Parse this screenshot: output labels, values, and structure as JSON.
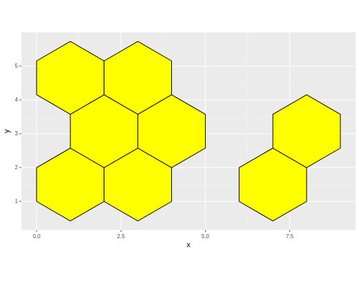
{
  "chart_data": {
    "type": "polygon",
    "xlabel": "x",
    "ylabel": "y",
    "fill": "#ffff00",
    "stroke": "#000000",
    "polygons": [
      {
        "x": [
          0,
          0,
          1,
          2,
          2,
          1
        ],
        "y": [
          1,
          2,
          2.577,
          2,
          1,
          0.423
        ]
      },
      {
        "x": [
          2,
          2,
          3,
          4,
          4,
          3
        ],
        "y": [
          1,
          2,
          2.577,
          2,
          1,
          0.423
        ]
      },
      {
        "x": [
          6,
          6,
          7,
          8,
          8,
          7
        ],
        "y": [
          1,
          2,
          2.577,
          2,
          1,
          0.423
        ]
      },
      {
        "x": [
          1,
          1,
          2,
          3,
          3,
          2
        ],
        "y": [
          2.577,
          3.577,
          4.155,
          3.577,
          2.577,
          2
        ]
      },
      {
        "x": [
          3,
          3,
          4,
          5,
          5,
          4
        ],
        "y": [
          2.577,
          3.577,
          4.155,
          3.577,
          2.577,
          2
        ]
      },
      {
        "x": [
          7,
          7,
          8,
          9,
          9,
          8
        ],
        "y": [
          2.577,
          3.577,
          4.155,
          3.577,
          2.577,
          2
        ]
      },
      {
        "x": [
          0,
          0,
          1,
          2,
          2,
          1
        ],
        "y": [
          4.155,
          5.155,
          5.732,
          5.155,
          4.155,
          3.577
        ]
      },
      {
        "x": [
          2,
          2,
          3,
          4,
          4,
          3
        ],
        "y": [
          4.155,
          5.155,
          5.732,
          5.155,
          4.155,
          3.577
        ]
      }
    ],
    "xlim": [
      -0.45,
      9.45
    ],
    "ylim": [
      0.158,
      5.997
    ],
    "xticks": [
      {
        "value": 0,
        "label": "0.0"
      },
      {
        "value": 2.5,
        "label": "2.5"
      },
      {
        "value": 5,
        "label": "5.0"
      },
      {
        "value": 7.5,
        "label": "7.5"
      }
    ],
    "yticks": [
      1,
      2,
      3,
      4,
      5
    ],
    "grid": true
  }
}
